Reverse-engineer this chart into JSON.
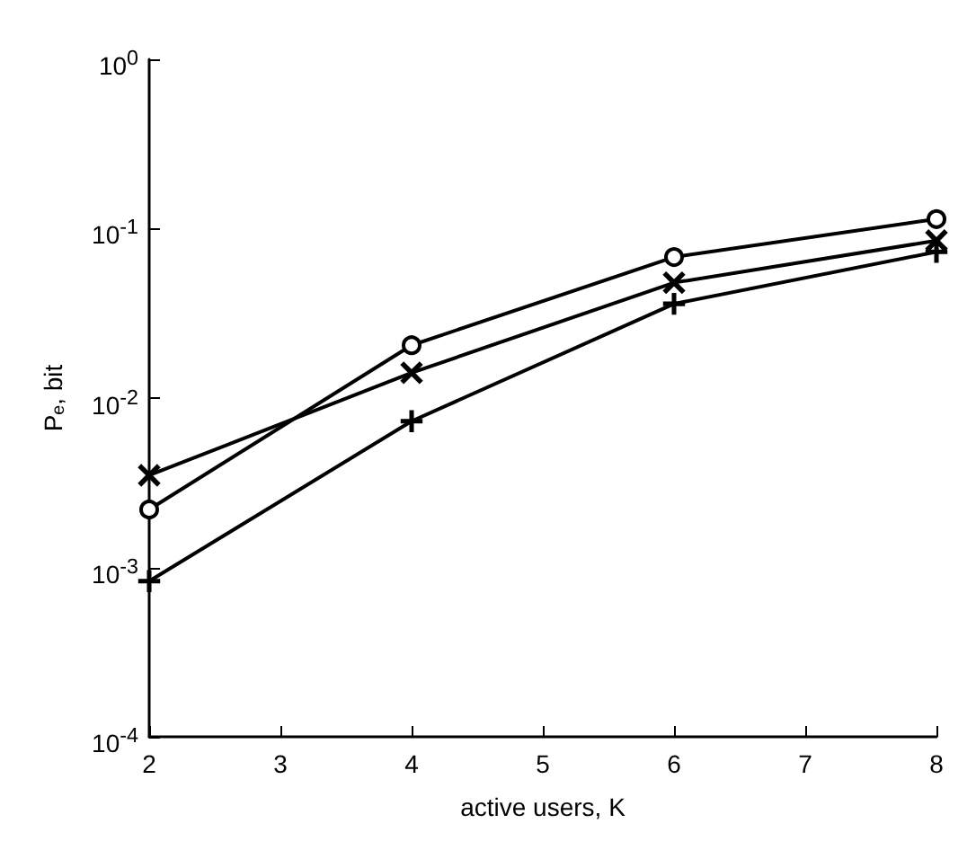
{
  "chart_data": {
    "type": "line",
    "xlabel": "active users, K",
    "ylabel": "P$_{e}$, bit",
    "x": [
      2,
      4,
      6,
      8
    ],
    "series": [
      {
        "color": "#000000",
        "marker": "circle",
        "values": [
          0.0022,
          0.0205,
          0.068,
          0.114
        ]
      },
      {
        "color": "#000000",
        "marker": "cross",
        "values": [
          0.0035,
          0.0141,
          0.048,
          0.085
        ]
      },
      {
        "color": "#000000",
        "marker": "plus",
        "values": [
          0.00083,
          0.0073,
          0.036,
          0.073
        ]
      }
    ],
    "xlim": [
      2,
      8
    ],
    "xticks": [
      2,
      3,
      4,
      5,
      6,
      7,
      8
    ],
    "ylim": [
      0.0001,
      1
    ],
    "yticks": [
      {
        "value": 0.0001,
        "label": "10$^{-4}$"
      },
      {
        "value": 0.001,
        "label": "10$^{-3}$"
      },
      {
        "value": 0.01,
        "label": "10$^{-2}$"
      },
      {
        "value": 0.1,
        "label": "10$^{-1}$"
      },
      {
        "value": 1,
        "label": "10$^{0}$"
      }
    ],
    "log": "y",
    "grid": false,
    "line_style": "solid"
  }
}
